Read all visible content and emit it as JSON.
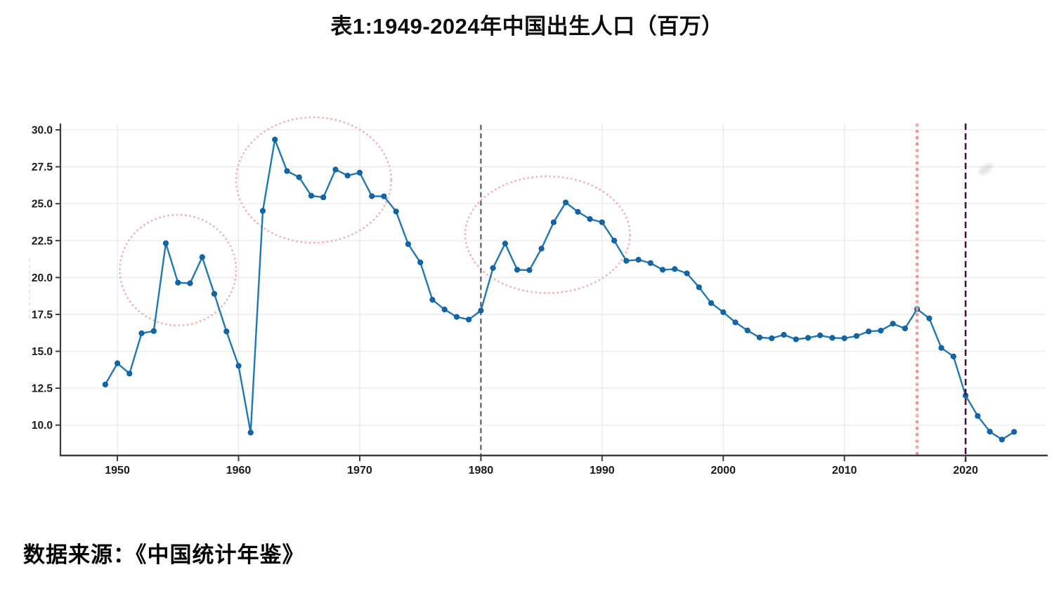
{
  "page": {
    "title": "表1:1949-2024年中国出生人口（百万）",
    "source_note": "数据来源：《中国统计年鉴》"
  },
  "chart_data": {
    "type": "line",
    "title": "表1:1949-2024年中国出生人口（百万）",
    "xlabel": "",
    "ylabel": "",
    "source": "数据来源：《中国统计年鉴》",
    "x": [
      1949,
      1950,
      1951,
      1952,
      1953,
      1954,
      1955,
      1956,
      1957,
      1958,
      1959,
      1960,
      1961,
      1962,
      1963,
      1964,
      1965,
      1966,
      1967,
      1968,
      1969,
      1970,
      1971,
      1972,
      1973,
      1974,
      1975,
      1976,
      1977,
      1978,
      1979,
      1980,
      1981,
      1982,
      1983,
      1984,
      1985,
      1986,
      1987,
      1988,
      1989,
      1990,
      1991,
      1992,
      1993,
      1994,
      1995,
      1996,
      1997,
      1998,
      1999,
      2000,
      2001,
      2002,
      2003,
      2004,
      2005,
      2006,
      2007,
      2008,
      2009,
      2010,
      2011,
      2012,
      2013,
      2014,
      2015,
      2016,
      2017,
      2018,
      2019,
      2020,
      2021,
      2022,
      2023,
      2024
    ],
    "series": [
      {
        "name": "出生人口（百万）",
        "values": [
          12.75,
          14.19,
          13.49,
          16.22,
          16.37,
          22.32,
          19.65,
          19.61,
          21.38,
          18.89,
          16.35,
          14.02,
          9.49,
          24.51,
          29.34,
          27.21,
          26.79,
          25.54,
          25.43,
          27.31,
          26.9,
          27.1,
          25.51,
          25.5,
          24.47,
          22.26,
          21.02,
          18.49,
          17.83,
          17.33,
          17.15,
          17.76,
          20.64,
          22.3,
          20.52,
          20.5,
          21.96,
          23.74,
          25.08,
          24.45,
          23.96,
          23.74,
          22.5,
          21.13,
          21.2,
          20.98,
          20.52,
          20.57,
          20.28,
          19.34,
          18.27,
          17.65,
          16.96,
          16.41,
          15.94,
          15.88,
          16.12,
          15.81,
          15.91,
          16.08,
          15.91,
          15.88,
          16.04,
          16.35,
          16.4,
          16.87,
          16.55,
          17.86,
          17.23,
          15.23,
          14.65,
          12.0,
          10.62,
          9.56,
          9.02,
          9.54
        ]
      }
    ],
    "xlim": [
      1945.3,
      2026.6
    ],
    "ylim": [
      7.99,
      30.43
    ],
    "x_ticks": [
      1950,
      1960,
      1970,
      1980,
      1990,
      2000,
      2010,
      2020
    ],
    "x_tick_labels": [
      "1950",
      "1960",
      "1970",
      "1980",
      "1990",
      "2000",
      "2010",
      "2020"
    ],
    "y_ticks": [
      10.0,
      12.5,
      15.0,
      17.5,
      20.0,
      22.5,
      25.0,
      27.5,
      30.0
    ],
    "y_tick_labels": [
      "10.0",
      "12.5",
      "15.0",
      "17.5",
      "20.0",
      "22.5",
      "25.0",
      "27.5",
      "30.0"
    ],
    "grid": true,
    "legend": "none",
    "colors": {
      "line": "#1f77b4",
      "marker_fill": "#1266a6",
      "marker_edge": "#0e5c9b",
      "grid": "#e8e8e8",
      "spine": "#3d3d3d",
      "tick_label": "#1b1b1b",
      "vline_1980": "#4f4f4f",
      "vline_2016": "#f18d8d",
      "vline_2020": "#4a1144",
      "ellipse": "#f2a3a3"
    },
    "annotations": {
      "vlines": [
        {
          "x": 1980,
          "style": "dashed",
          "color": "#4f4f4f",
          "name": "vline-1980"
        },
        {
          "x": 2016,
          "style": "dotted",
          "color": "#f18d8d",
          "name": "vline-2016"
        },
        {
          "x": 2020,
          "style": "dashed",
          "color": "#4a1144",
          "name": "vline-2020"
        }
      ],
      "ellipses": [
        {
          "cx": 1955.0,
          "cy": 20.5,
          "rx_years": 4.8,
          "ry_units": 3.75,
          "name": "boom-1-ellipse"
        },
        {
          "cx": 1966.2,
          "cy": 26.6,
          "rx_years": 6.4,
          "ry_units": 4.25,
          "name": "boom-2-ellipse"
        },
        {
          "cx": 1985.5,
          "cy": 22.9,
          "rx_years": 6.8,
          "ry_units": 3.95,
          "name": "boom-3-ellipse"
        }
      ]
    }
  }
}
